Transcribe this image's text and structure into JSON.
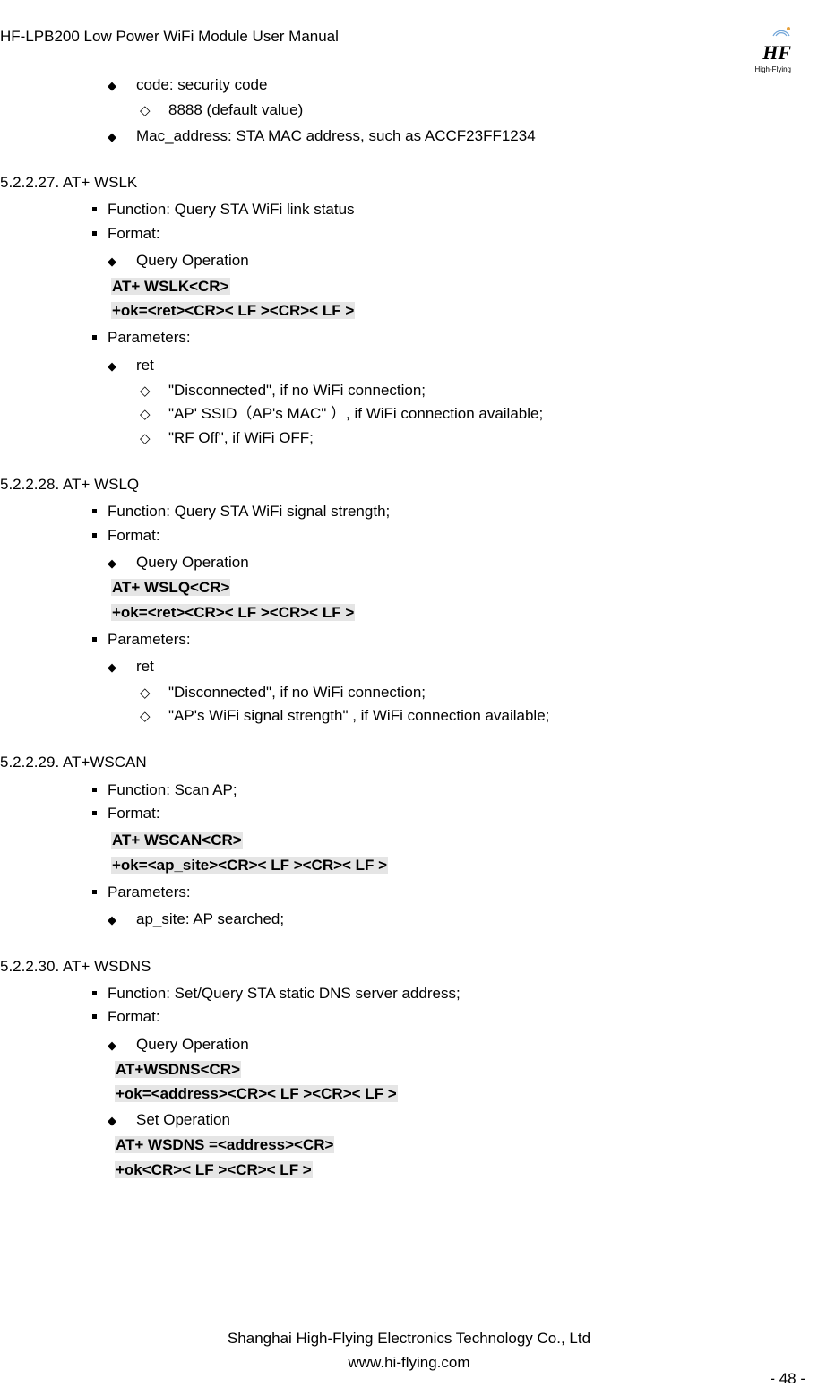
{
  "header": {
    "title": "HF-LPB200 Low Power WiFi Module User Manual",
    "logo_main": "HF",
    "logo_sub": "High-Flying"
  },
  "pre_diamond": [
    {
      "text": "code:  security code",
      "hollow": [
        "8888 (default value)"
      ]
    },
    {
      "text": "Mac_address: STA MAC address, such as ACCF23FF1234"
    }
  ],
  "sections": [
    {
      "num": "5.2.2.27.",
      "title": "AT+ WSLK",
      "items": [
        {
          "type": "sq",
          "text": "Function: Query STA WiFi link status"
        },
        {
          "type": "sq",
          "text": "Format:"
        },
        {
          "type": "di",
          "text": "Query Operation"
        },
        {
          "type": "cmd",
          "text": "AT+ WSLK<CR>"
        },
        {
          "type": "cmd",
          "text": "+ok=<ret><CR>< LF ><CR>< LF >"
        },
        {
          "type": "sq",
          "text": "Parameters:"
        },
        {
          "type": "di",
          "text": "ret"
        },
        {
          "type": "ho",
          "text": "\"Disconnected\", if no WiFi connection;"
        },
        {
          "type": "ho",
          "text": "\"AP' SSID（AP's MAC\" ）, if WiFi connection available;"
        },
        {
          "type": "ho",
          "text": "\"RF Off\", if WiFi OFF;"
        }
      ]
    },
    {
      "num": "5.2.2.28.",
      "title": "AT+ WSLQ",
      "items": [
        {
          "type": "sq",
          "text": "Function: Query STA WiFi signal strength;"
        },
        {
          "type": "sq",
          "text": "Format:"
        },
        {
          "type": "di",
          "text": "Query Operation"
        },
        {
          "type": "cmd",
          "text": "AT+ WSLQ<CR>"
        },
        {
          "type": "cmd",
          "text": "+ok=<ret><CR>< LF ><CR>< LF >"
        },
        {
          "type": "sq",
          "text": "Parameters:"
        },
        {
          "type": "di",
          "text": "ret"
        },
        {
          "type": "ho",
          "text": "\"Disconnected\", if no WiFi connection;"
        },
        {
          "type": "ho",
          "text": "\"AP's WiFi signal strength\" , if WiFi connection available;"
        }
      ]
    },
    {
      "num": "5.2.2.29.",
      "title": "AT+WSCAN",
      "items": [
        {
          "type": "sq",
          "text": "Function: Scan AP;"
        },
        {
          "type": "sq",
          "text": "Format:"
        },
        {
          "type": "cmd",
          "text": "AT+ WSCAN<CR>"
        },
        {
          "type": "cmd",
          "text": "+ok=<ap_site><CR>< LF ><CR>< LF >"
        },
        {
          "type": "sq",
          "text": "Parameters:"
        },
        {
          "type": "di",
          "text": "ap_site: AP searched;"
        }
      ]
    },
    {
      "num": "5.2.2.30.",
      "title": "AT+ WSDNS",
      "items": [
        {
          "type": "sq",
          "text": "Function: Set/Query STA static DNS server address;"
        },
        {
          "type": "sq",
          "text": "Format:"
        },
        {
          "type": "di",
          "text": "Query Operation"
        },
        {
          "type": "cmd2",
          "text": "AT+WSDNS<CR>"
        },
        {
          "type": "cmd2",
          "text": "+ok=<address><CR>< LF ><CR>< LF >"
        },
        {
          "type": "di",
          "text": "Set Operation"
        },
        {
          "type": "cmd2",
          "text": "AT+ WSDNS =<address><CR>"
        },
        {
          "type": "cmd2",
          "text": "+ok<CR>< LF ><CR>< LF >"
        }
      ]
    }
  ],
  "footer": {
    "company": "Shanghai High-Flying Electronics Technology Co., Ltd",
    "url": "www.hi-flying.com",
    "page": "- 48 -"
  }
}
